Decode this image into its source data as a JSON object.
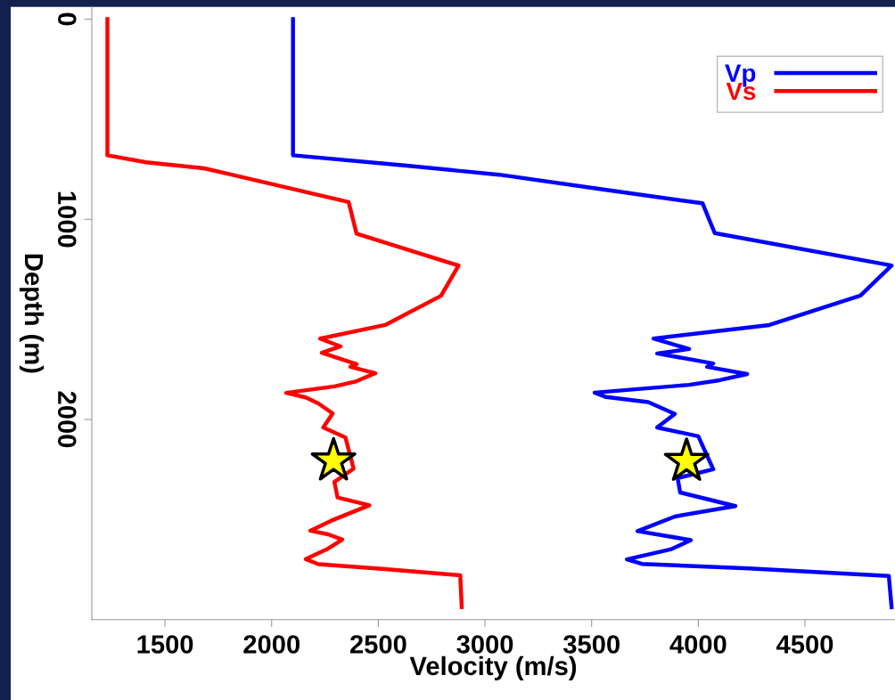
{
  "chart_data": {
    "type": "line",
    "xlabel": "Velocity (m/s)",
    "ylabel": "Depth (m)",
    "xlim": [
      1157,
      4922
    ],
    "xticks": [
      1500,
      2000,
      2500,
      3000,
      3500,
      4000,
      4500
    ],
    "ylim": [
      3000,
      -60
    ],
    "yticks": [
      0,
      1000,
      2000
    ],
    "grid": false,
    "legend": "top right",
    "marker": "none",
    "line_style": "solid",
    "series": [
      {
        "name": "Vp",
        "color": "#0000ff",
        "x": [
          2100,
          2100,
          2622,
          3067,
          3569,
          4020,
          4077,
          4906,
          4760,
          4333,
          3790,
          3957,
          3807,
          4070,
          4041,
          4229,
          4099,
          3957,
          3514,
          3568,
          3765,
          3890,
          3807,
          4000,
          4070,
          3903,
          3915,
          4174,
          3890,
          3715,
          3965,
          3874,
          3665,
          3736,
          4237,
          4893,
          4906
        ],
        "values": [
          0,
          680,
          731,
          777,
          853,
          920,
          1069,
          1231,
          1381,
          1528,
          1596,
          1648,
          1670,
          1720,
          1737,
          1773,
          1804,
          1827,
          1866,
          1888,
          1913,
          1972,
          2040,
          2084,
          2249,
          2293,
          2365,
          2433,
          2485,
          2558,
          2603,
          2648,
          2699,
          2722,
          2744,
          2782,
          2938
        ]
      },
      {
        "name": "Vs",
        "color": "#ff0000",
        "x": [
          1230,
          1230,
          1412,
          1684,
          2361,
          2398,
          2876,
          2794,
          2532,
          2227,
          2323,
          2235,
          2398,
          2369,
          2486,
          2398,
          2294,
          2068,
          2160,
          2219,
          2286,
          2242,
          2346,
          2384,
          2294,
          2309,
          2458,
          2277,
          2181,
          2265,
          2331,
          2265,
          2160,
          2219,
          2518,
          2884,
          2891
        ],
        "values": [
          0,
          680,
          715,
          745,
          914,
          1072,
          1231,
          1382,
          1528,
          1596,
          1635,
          1667,
          1724,
          1737,
          1769,
          1809,
          1835,
          1867,
          1890,
          1920,
          1970,
          2040,
          2090,
          2246,
          2312,
          2390,
          2429,
          2507,
          2556,
          2574,
          2600,
          2645,
          2698,
          2723,
          2747,
          2779,
          2938
        ]
      },
      {
        "type": "scatter",
        "marker": "star",
        "color": "#ffff00",
        "x": [
          2290,
          3945
        ],
        "values": [
          2207,
          2209
        ]
      }
    ]
  }
}
